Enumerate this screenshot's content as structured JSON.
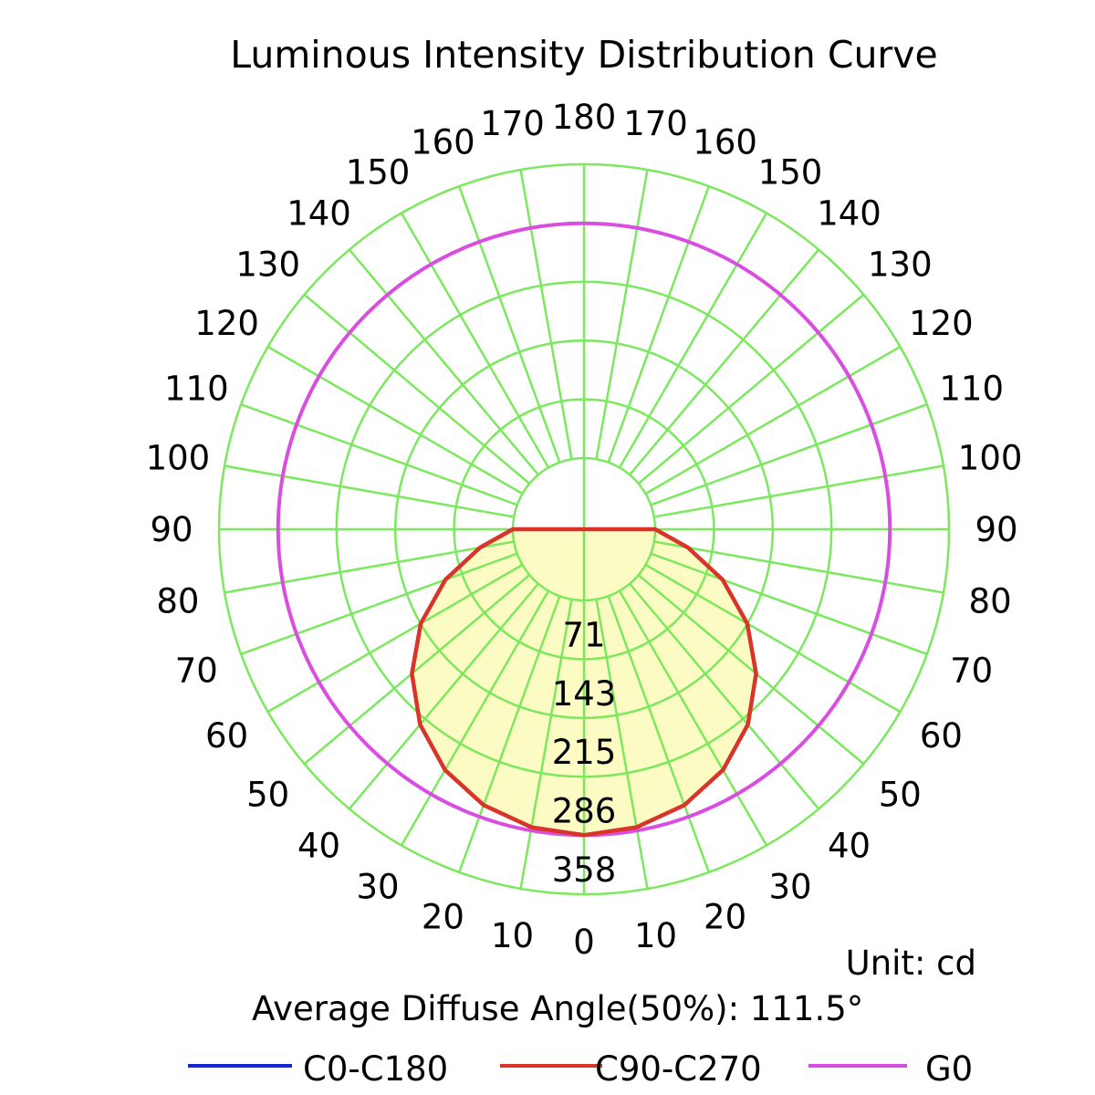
{
  "chart_data": {
    "type": "polar",
    "title": "Luminous Intensity Distribution Curve",
    "unit_label": "Unit: cd",
    "diffuse_angle_label": "Average Diffuse Angle(50%): 111.5°",
    "radial_ticks": [
      "71",
      "143",
      "215",
      "286",
      "358"
    ],
    "radial_max": 358,
    "angle_labels_left": [
      "0",
      "10",
      "20",
      "30",
      "40",
      "50",
      "60",
      "70",
      "80",
      "90",
      "100",
      "110",
      "120",
      "130",
      "140",
      "150",
      "160",
      "170",
      "180"
    ],
    "angle_labels_right": [
      "10",
      "20",
      "30",
      "40",
      "50",
      "60",
      "70",
      "80",
      "90",
      "100",
      "110",
      "120",
      "130",
      "140",
      "150",
      "160",
      "170"
    ],
    "grid_color": "#7be85d",
    "fill_color": "#fdfbc4",
    "series": [
      {
        "name": "C0-C180",
        "color": "#1428d2",
        "angles": [],
        "values": []
      },
      {
        "name": "C90-C270",
        "color": "#d8342a",
        "angles": [
          0,
          10,
          20,
          30,
          40,
          50,
          60,
          70,
          80,
          90
        ],
        "values": [
          286,
          282,
          271,
          252,
          224,
          187,
          143,
          93,
          42,
          0
        ]
      },
      {
        "name": "G0",
        "color": "#d94ee0",
        "angles": [
          0,
          90,
          180
        ],
        "values": [
          286,
          286,
          286
        ]
      }
    ]
  }
}
